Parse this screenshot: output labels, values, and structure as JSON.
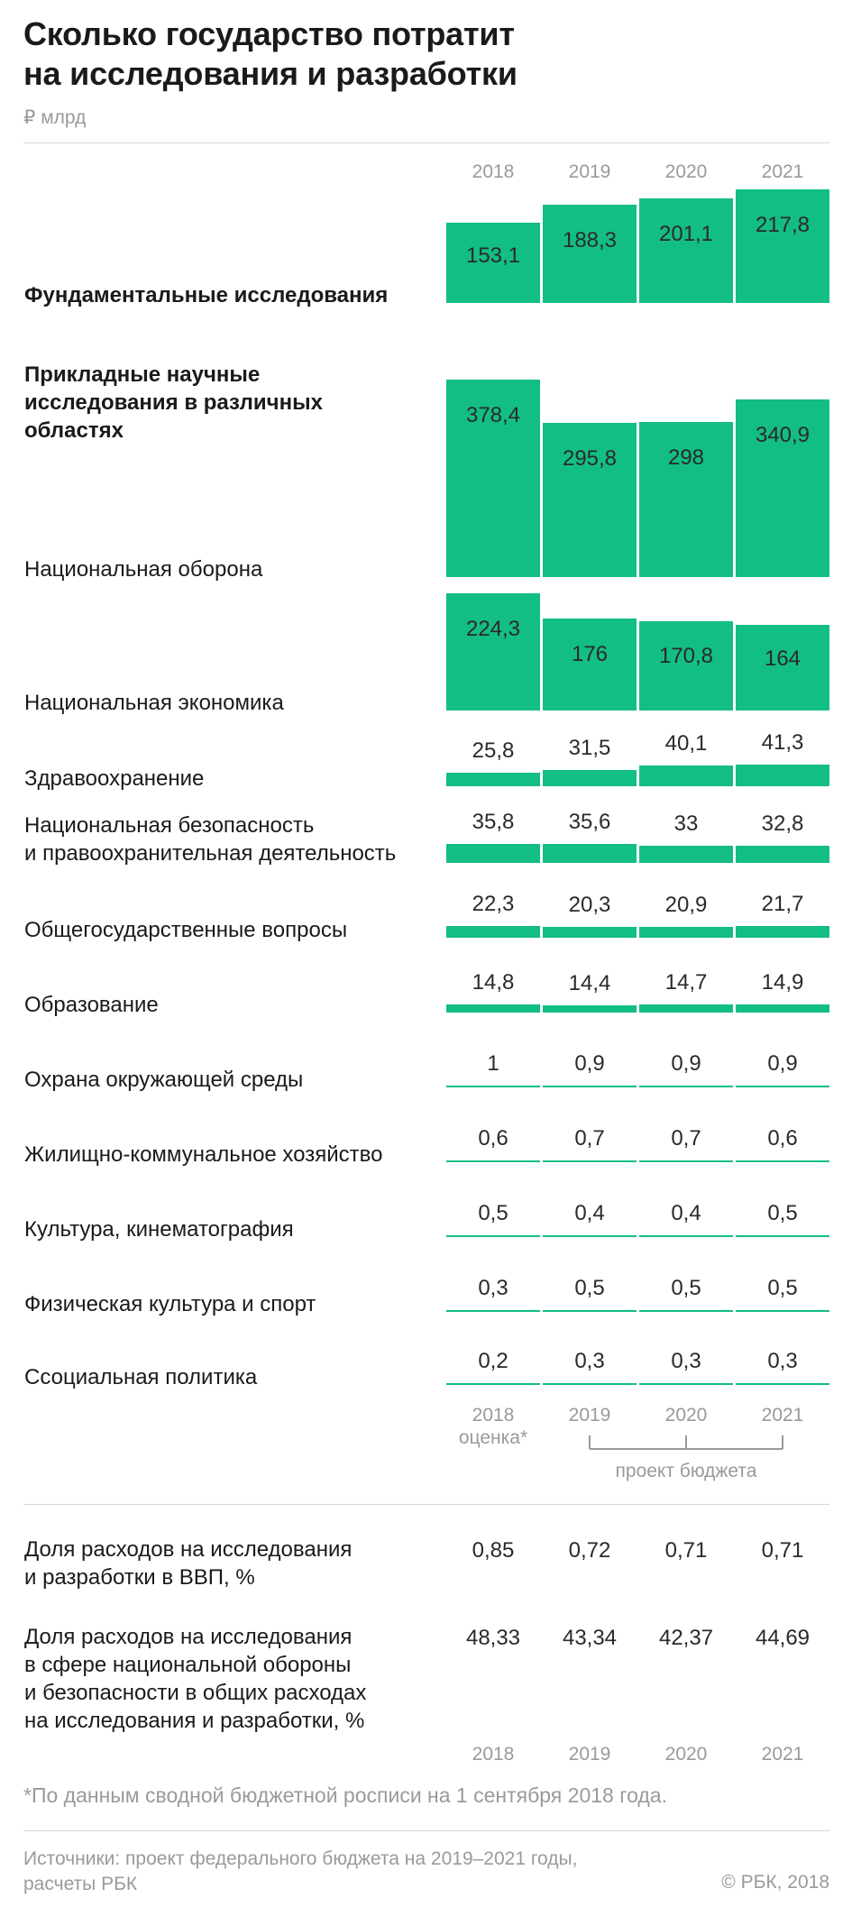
{
  "header": {
    "title_line1": "Сколько государство потратит",
    "title_line2": "на исследования и разработки",
    "unit": "₽ млрд"
  },
  "years": [
    "2018",
    "2019",
    "2020",
    "2021"
  ],
  "estimate_note": "оценка*",
  "budget_label": "проект бюджета",
  "chart_data": {
    "type": "bar",
    "title": "Сколько государство потратит на исследования и разработки",
    "unit": "₽ млрд",
    "categories": [
      "2018",
      "2019",
      "2020",
      "2021"
    ],
    "rows": [
      {
        "label": [
          "Фундаментальные исследования"
        ],
        "bold": true,
        "values": [
          153.1,
          188.3,
          201.1,
          217.8
        ],
        "labels": [
          "153,1",
          "188,3",
          "201,1",
          "217,8"
        ]
      },
      {
        "label": [
          "Прикладные научные",
          "исследования в различных",
          "областях"
        ],
        "bold": true,
        "values": null,
        "labels": null
      },
      {
        "label": [
          "Национальная оборона"
        ],
        "bold": false,
        "values": [
          378.4,
          295.8,
          298,
          340.9
        ],
        "labels": [
          "378,4",
          "295,8",
          "298",
          "340,9"
        ]
      },
      {
        "label": [
          "Национальная экономика"
        ],
        "bold": false,
        "values": [
          224.3,
          176,
          170.8,
          164
        ],
        "labels": [
          "224,3",
          "176",
          "170,8",
          "164"
        ]
      },
      {
        "label": [
          "Здравоохранение"
        ],
        "bold": false,
        "values": [
          25.8,
          31.5,
          40.1,
          41.3
        ],
        "labels": [
          "25,8",
          "31,5",
          "40,1",
          "41,3"
        ]
      },
      {
        "label": [
          "Национальная безопасность",
          "и правоохранительная деятельность"
        ],
        "bold": false,
        "values": [
          35.8,
          35.6,
          33,
          32.8
        ],
        "labels": [
          "35,8",
          "35,6",
          "33",
          "32,8"
        ]
      },
      {
        "label": [
          "Общегосударственные вопросы"
        ],
        "bold": false,
        "values": [
          22.3,
          20.3,
          20.9,
          21.7
        ],
        "labels": [
          "22,3",
          "20,3",
          "20,9",
          "21,7"
        ]
      },
      {
        "label": [
          "Образование"
        ],
        "bold": false,
        "values": [
          14.8,
          14.4,
          14.7,
          14.9
        ],
        "labels": [
          "14,8",
          "14,4",
          "14,7",
          "14,9"
        ]
      },
      {
        "label": [
          "Охрана окружающей среды"
        ],
        "bold": false,
        "values": [
          1,
          0.9,
          0.9,
          0.9
        ],
        "labels": [
          "1",
          "0,9",
          "0,9",
          "0,9"
        ]
      },
      {
        "label": [
          "Жилищно-коммунальное хозяйство"
        ],
        "bold": false,
        "values": [
          0.6,
          0.7,
          0.7,
          0.6
        ],
        "labels": [
          "0,6",
          "0,7",
          "0,7",
          "0,6"
        ]
      },
      {
        "label": [
          "Культура, кинематография"
        ],
        "bold": false,
        "values": [
          0.5,
          0.4,
          0.4,
          0.5
        ],
        "labels": [
          "0,5",
          "0,4",
          "0,4",
          "0,5"
        ]
      },
      {
        "label": [
          "Физическая культура и спорт"
        ],
        "bold": false,
        "values": [
          0.3,
          0.5,
          0.5,
          0.5
        ],
        "labels": [
          "0,3",
          "0,5",
          "0,5",
          "0,5"
        ]
      },
      {
        "label": [
          "Ссоциальная политика"
        ],
        "bold": false,
        "values": [
          0.2,
          0.3,
          0.3,
          0.3
        ],
        "labels": [
          "0,2",
          "0,3",
          "0,3",
          "0,3"
        ]
      }
    ],
    "bar_color": "#13bd86"
  },
  "stats": [
    {
      "label": [
        "Доля расходов на исследования",
        "и разработки в ВВП, %"
      ],
      "values": [
        "0,85",
        "0,72",
        "0,71",
        "0,71"
      ]
    },
    {
      "label": [
        "Доля расходов на исследования",
        "в сфере национальной обороны",
        "и безопасности в общих расходах",
        "на исследования и разработки, %"
      ],
      "values": [
        "48,33",
        "43,34",
        "42,37",
        "44,69"
      ]
    }
  ],
  "footnote": "*По данным сводной бюджетной росписи на 1 сентября 2018 года.",
  "sources_line1": "Источники: проект федерального бюджета на 2019–2021 годы,",
  "sources_line2": "расчеты РБК",
  "copyright": "© РБК, 2018",
  "colors": {
    "bar": "#13bd86",
    "muted_text": "#9a9a9a",
    "text": "#1a1a1a",
    "rule": "#d9d9d9"
  }
}
